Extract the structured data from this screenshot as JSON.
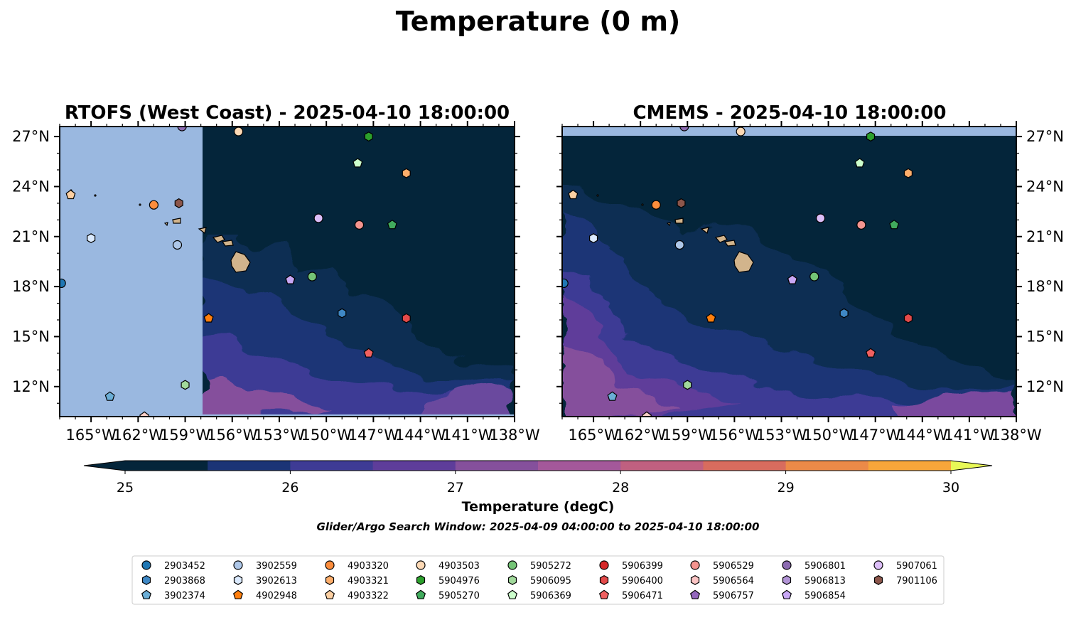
{
  "figure": {
    "suptitle": "Temperature (0 m)",
    "subtitle": "Glider/Argo Search Window: 2025-04-09 04:00:00 to 2025-04-10 18:00:00"
  },
  "chart_data": [
    {
      "type": "heatmap",
      "title": "RTOFS (West Coast) - 2025-04-10 18:00:00",
      "xlim": [
        -167,
        -138
      ],
      "ylim": [
        10.2,
        27.6
      ],
      "xticks": [
        "165°W",
        "162°W",
        "159°W",
        "156°W",
        "153°W",
        "150°W",
        "147°W",
        "144°W",
        "141°W",
        "138°W"
      ],
      "yticks": [
        "12°N",
        "15°N",
        "18°N",
        "21°N",
        "24°N",
        "27°N"
      ],
      "ytick_side": "left",
      "model_domain_lon_min": -157.9,
      "domain_bottom_lat": 10.3
    },
    {
      "type": "heatmap",
      "title": "CMEMS - 2025-04-10 18:00:00",
      "xlim": [
        -167,
        -138
      ],
      "ylim": [
        10.2,
        27.6
      ],
      "xticks": [
        "165°W",
        "162°W",
        "159°W",
        "156°W",
        "153°W",
        "150°W",
        "147°W",
        "144°W",
        "141°W",
        "138°W"
      ],
      "yticks": [
        "12°N",
        "15°N",
        "18°N",
        "21°N",
        "24°N",
        "27°N"
      ],
      "ytick_side": "right",
      "domain_top_lat": 27.0
    }
  ],
  "colorbar": {
    "label": "Temperature (degC)",
    "ticks": [
      "25",
      "26",
      "27",
      "28",
      "29",
      "30"
    ],
    "range": [
      25,
      30
    ],
    "step": 0.5,
    "colors": [
      "#04253a",
      "#1b3476",
      "#3e3b95",
      "#5e3d9a",
      "#85509c",
      "#a4589a",
      "#c06080",
      "#d86c5e",
      "#ec8a48",
      "#f7a63a",
      "#fbc83a",
      "#e8f856"
    ]
  },
  "legend": {
    "title": "",
    "items": [
      {
        "id": "2903452",
        "marker": "circle",
        "color": "#1f77b4",
        "lon": -166.9,
        "lat": 18.2
      },
      {
        "id": "2903868",
        "marker": "hexagon",
        "color": "#3f88c5",
        "lon": -149.0,
        "lat": 16.4
      },
      {
        "id": "3902374",
        "marker": "pentagon",
        "color": "#6baed6",
        "lon": -163.8,
        "lat": 11.4
      },
      {
        "id": "3902559",
        "marker": "circle",
        "color": "#aec7e8",
        "lon": -159.5,
        "lat": 20.5
      },
      {
        "id": "3902613",
        "marker": "hexagon",
        "color": "#dbeafe",
        "lon": -165.0,
        "lat": 20.9
      },
      {
        "id": "4902948",
        "marker": "pentagon",
        "color": "#ff7f0e",
        "lon": -157.5,
        "lat": 16.1
      },
      {
        "id": "4903320",
        "marker": "circle",
        "color": "#fd8d3c",
        "lon": -161.0,
        "lat": 22.9
      },
      {
        "id": "4903321",
        "marker": "hexagon",
        "color": "#fdae6b",
        "lon": -144.9,
        "lat": 24.8
      },
      {
        "id": "4903322",
        "marker": "pentagon",
        "color": "#fdd0a2",
        "lon": -166.3,
        "lat": 23.5
      },
      {
        "id": "4903503",
        "marker": "circle",
        "color": "#fdd9b5",
        "lon": -155.6,
        "lat": 27.3
      },
      {
        "id": "5904976",
        "marker": "hexagon",
        "color": "#2ca02c",
        "lon": -147.3,
        "lat": 27.0
      },
      {
        "id": "5905270",
        "marker": "pentagon",
        "color": "#41ab5d",
        "lon": -145.8,
        "lat": 21.7
      },
      {
        "id": "5905272",
        "marker": "circle",
        "color": "#74c476",
        "lon": -150.9,
        "lat": 18.6
      },
      {
        "id": "5906095",
        "marker": "hexagon",
        "color": "#a1d99b",
        "lon": -159.0,
        "lat": 12.1
      },
      {
        "id": "5906369",
        "marker": "pentagon",
        "color": "#ccffcc",
        "lon": -148.0,
        "lat": 25.4
      },
      {
        "id": "5906399",
        "marker": "circle",
        "color": "#d62728",
        "lon": null,
        "lat": null
      },
      {
        "id": "5906400",
        "marker": "hexagon",
        "color": "#e34a4a",
        "lon": -144.9,
        "lat": 16.1
      },
      {
        "id": "5906471",
        "marker": "pentagon",
        "color": "#f06060",
        "lon": -147.3,
        "lat": 14.0
      },
      {
        "id": "5906529",
        "marker": "circle",
        "color": "#f4948f",
        "lon": -147.9,
        "lat": 21.7
      },
      {
        "id": "5906564",
        "marker": "hexagon",
        "color": "#fbc4c4",
        "lon": null,
        "lat": null
      },
      {
        "id": "5906757",
        "marker": "pentagon",
        "color": "#9467bd",
        "lon": -152.3,
        "lat": 18.4
      },
      {
        "id": "5906801",
        "marker": "circle",
        "color": "#8c6bb1",
        "lon": -159.2,
        "lat": 27.6
      },
      {
        "id": "5906813",
        "marker": "hexagon",
        "color": "#b294d6",
        "lon": null,
        "lat": null
      },
      {
        "id": "5906854",
        "marker": "pentagon",
        "color": "#c8a7f5",
        "lon": -152.3,
        "lat": 18.4
      },
      {
        "id": "5907061",
        "marker": "circle",
        "color": "#dcbef8",
        "lon": -150.5,
        "lat": 22.1
      },
      {
        "id": "7901106",
        "marker": "hexagon",
        "color": "#8c564b",
        "lon": -159.4,
        "lat": 23.0
      },
      {
        "id": "extra-1",
        "marker": "pentagon",
        "color": "#fdd0c8",
        "lon": -161.6,
        "lat": 10.2
      }
    ]
  },
  "colors": {
    "ocean_mask": "#9ab8e0",
    "land": "#d2b48c",
    "cold": "#04253a"
  }
}
